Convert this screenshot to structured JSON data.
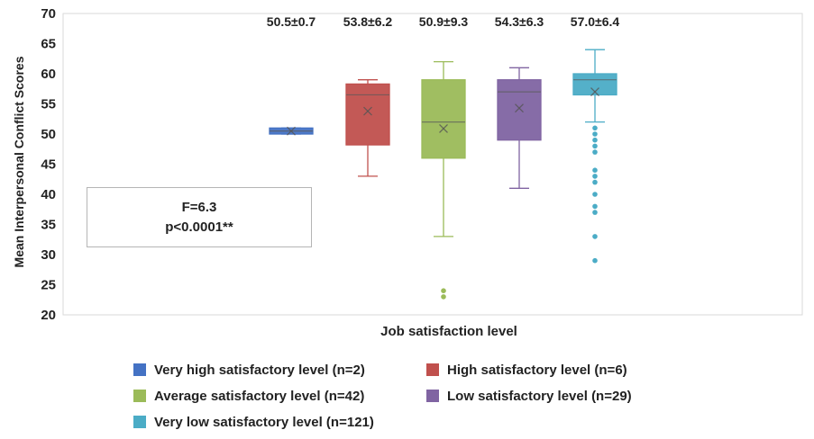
{
  "chart_data": {
    "type": "box",
    "xlabel": "Job satisfaction level",
    "ylabel": "Mean Interpersonal Conflict Scores",
    "ylim": [
      20,
      70
    ],
    "yticks": [
      20,
      25,
      30,
      35,
      40,
      45,
      50,
      55,
      60,
      65,
      70
    ],
    "grid": false,
    "legend_position": "bottom",
    "annotation": {
      "line1": "F=6.3",
      "line2": "p<0.0001**"
    },
    "series": [
      {
        "name": "Very high satisfactory level (n=2)",
        "label": "50.5±0.7",
        "color": "#4472c4",
        "min": 50.0,
        "q1": 50.0,
        "median": 50.5,
        "q3": 51.0,
        "max": 51.0,
        "mean": 50.5,
        "outliers": []
      },
      {
        "name": "High satisfactory level (n=6)",
        "label": "53.8±6.2",
        "color": "#c0504d",
        "min": 43,
        "q1": 48.2,
        "median": 56.5,
        "q3": 58.3,
        "max": 59,
        "mean": 53.8,
        "outliers": []
      },
      {
        "name": "Average satisfactory level (n=42)",
        "label": "50.9±9.3",
        "color": "#9bbb59",
        "min": 33,
        "q1": 46,
        "median": 52,
        "q3": 59,
        "max": 62,
        "mean": 50.9,
        "outliers": [
          24,
          23
        ]
      },
      {
        "name": "Low satisfactory level (n=29)",
        "label": "54.3±6.3",
        "color": "#8064a2",
        "min": 41,
        "q1": 49,
        "median": 57,
        "q3": 59,
        "max": 61,
        "mean": 54.3,
        "outliers": []
      },
      {
        "name": "Very low satisfactory level (n=121)",
        "label": "57.0±6.4",
        "color": "#4bacc6",
        "min": 52,
        "q1": 56.5,
        "median": 59,
        "q3": 60,
        "max": 64,
        "mean": 57.0,
        "outliers": [
          51,
          50,
          49,
          48,
          47,
          44,
          43,
          42,
          40,
          38,
          37,
          33,
          29
        ]
      }
    ]
  }
}
